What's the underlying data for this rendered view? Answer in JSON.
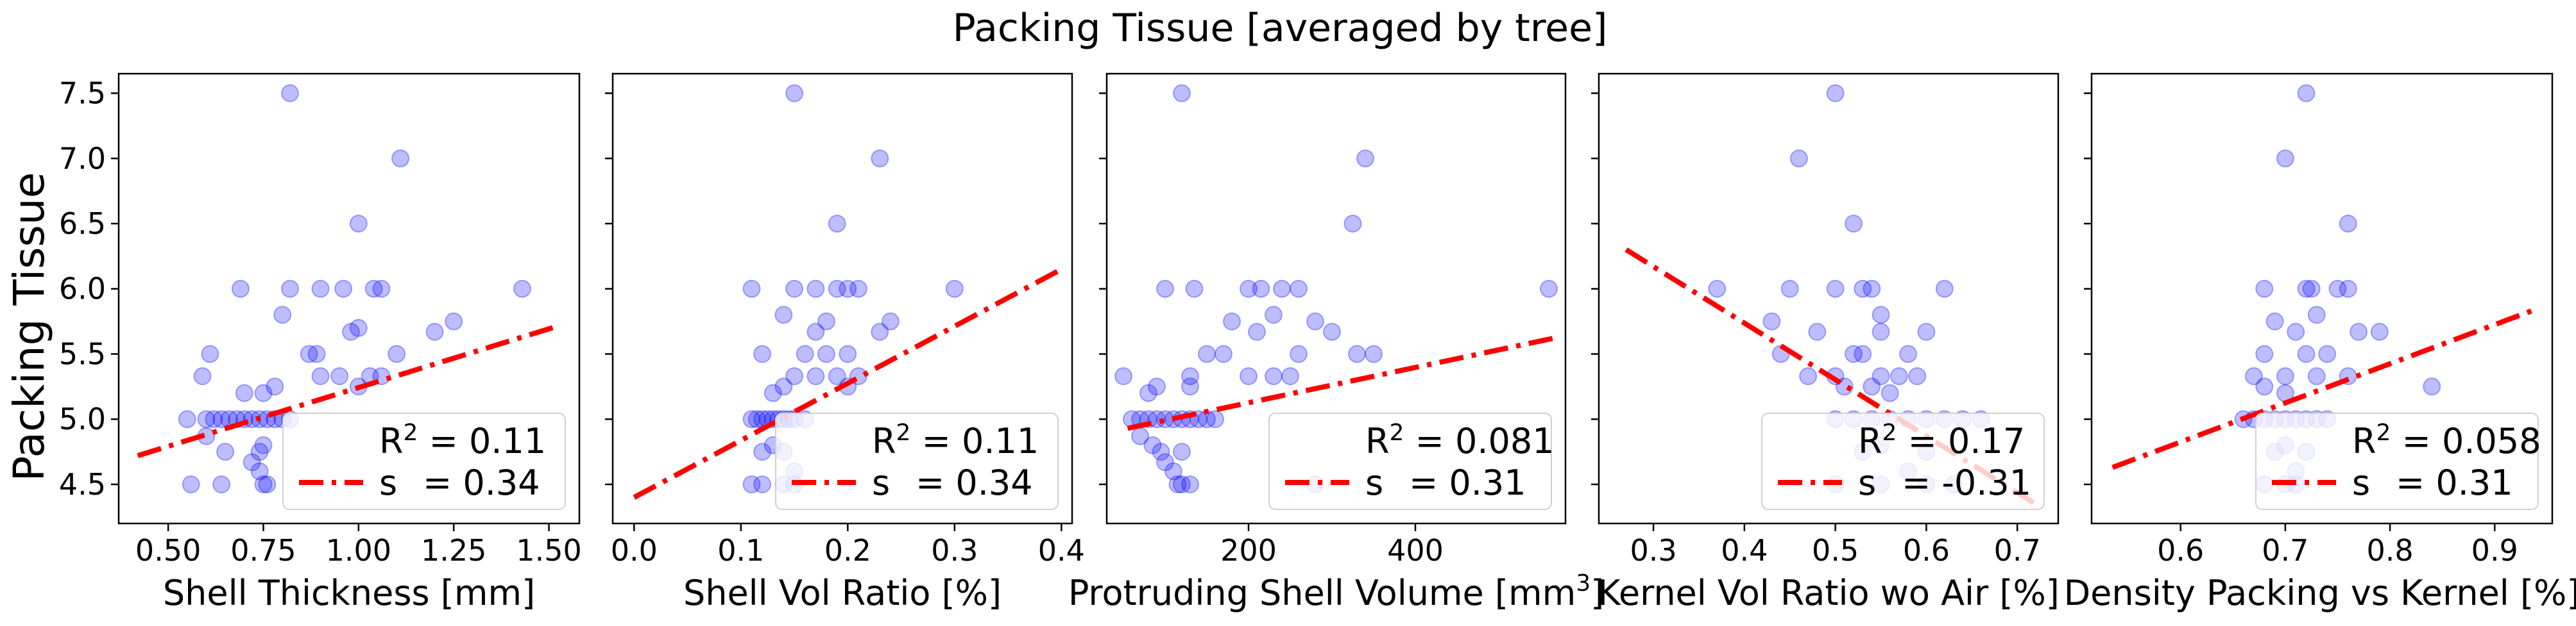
{
  "figure_title": "Packing Tissue [averaged by tree]",
  "ylabel": "Packing Tissue",
  "colors": {
    "points": "#0000ff",
    "fit_line": "#ff0000",
    "axes": "#000000"
  },
  "chart_data": [
    {
      "type": "scatter",
      "xlabel": "Shell Thickness [mm]",
      "xlabel_sup": "",
      "xlabel_tail": "",
      "xlim": [
        0.37,
        1.58
      ],
      "ylim": [
        4.2,
        7.65
      ],
      "xticks": [
        0.5,
        0.75,
        1.0,
        1.25,
        1.5
      ],
      "xtick_labels": [
        "0.50",
        "0.75",
        "1.00",
        "1.25",
        "1.50"
      ],
      "yticks": [
        4.5,
        5.0,
        5.5,
        6.0,
        6.5,
        7.0,
        7.5
      ],
      "ytick_labels": [
        "4.5",
        "5.0",
        "5.5",
        "6.0",
        "6.5",
        "7.0",
        "7.5"
      ],
      "fit": {
        "x": [
          0.42,
          1.53
        ],
        "y": [
          4.72,
          5.72
        ]
      },
      "legend": {
        "r2_label": "R",
        "r2_sup": "2",
        "r2_value": " = 0.11",
        "s_label": "s",
        "s_value": "= 0.34"
      },
      "points": [
        [
          0.82,
          7.5
        ],
        [
          1.11,
          7.0
        ],
        [
          1.0,
          6.5
        ],
        [
          0.69,
          6.0
        ],
        [
          0.82,
          6.0
        ],
        [
          0.9,
          6.0
        ],
        [
          0.96,
          6.0
        ],
        [
          1.04,
          6.0
        ],
        [
          1.06,
          6.0
        ],
        [
          1.43,
          6.0
        ],
        [
          0.8,
          5.8
        ],
        [
          1.0,
          5.7
        ],
        [
          1.25,
          5.75
        ],
        [
          0.98,
          5.67
        ],
        [
          1.2,
          5.67
        ],
        [
          0.87,
          5.5
        ],
        [
          0.89,
          5.5
        ],
        [
          1.1,
          5.5
        ],
        [
          0.61,
          5.5
        ],
        [
          0.9,
          5.33
        ],
        [
          0.95,
          5.33
        ],
        [
          1.03,
          5.33
        ],
        [
          1.06,
          5.33
        ],
        [
          0.59,
          5.33
        ],
        [
          0.78,
          5.25
        ],
        [
          1.0,
          5.25
        ],
        [
          0.7,
          5.2
        ],
        [
          0.75,
          5.2
        ],
        [
          0.55,
          5.0
        ],
        [
          0.6,
          5.0
        ],
        [
          0.62,
          5.0
        ],
        [
          0.64,
          5.0
        ],
        [
          0.66,
          5.0
        ],
        [
          0.68,
          5.0
        ],
        [
          0.7,
          5.0
        ],
        [
          0.72,
          5.0
        ],
        [
          0.74,
          5.0
        ],
        [
          0.76,
          5.0
        ],
        [
          0.78,
          5.0
        ],
        [
          0.8,
          5.0
        ],
        [
          0.82,
          5.0
        ],
        [
          0.65,
          4.75
        ],
        [
          0.74,
          4.75
        ],
        [
          0.75,
          4.8
        ],
        [
          0.74,
          4.6
        ],
        [
          0.56,
          4.5
        ],
        [
          0.64,
          4.5
        ],
        [
          0.75,
          4.5
        ],
        [
          0.76,
          4.5
        ],
        [
          0.6,
          4.87
        ],
        [
          0.72,
          4.67
        ]
      ]
    },
    {
      "type": "scatter",
      "xlabel": "Shell Vol Ratio [%]",
      "xlabel_sup": "",
      "xlabel_tail": "",
      "xlim": [
        -0.02,
        0.41
      ],
      "ylim": [
        4.2,
        7.65
      ],
      "xticks": [
        0.0,
        0.1,
        0.2,
        0.3,
        0.4
      ],
      "xtick_labels": [
        "0.0",
        "0.1",
        "0.2",
        "0.3",
        "0.4"
      ],
      "yticks": [
        4.5,
        5.0,
        5.5,
        6.0,
        6.5,
        7.0,
        7.5
      ],
      "ytick_labels": [
        "",
        "",
        "",
        "",
        "",
        "",
        ""
      ],
      "fit": {
        "x": [
          0.0,
          0.4
        ],
        "y": [
          4.4,
          6.15
        ]
      },
      "legend": {
        "r2_label": "R",
        "r2_sup": "2",
        "r2_value": " = 0.11",
        "s_label": "s",
        "s_value": "= 0.34"
      },
      "points": [
        [
          0.15,
          7.5
        ],
        [
          0.23,
          7.0
        ],
        [
          0.19,
          6.5
        ],
        [
          0.11,
          6.0
        ],
        [
          0.15,
          6.0
        ],
        [
          0.17,
          6.0
        ],
        [
          0.19,
          6.0
        ],
        [
          0.2,
          6.0
        ],
        [
          0.21,
          6.0
        ],
        [
          0.3,
          6.0
        ],
        [
          0.14,
          5.8
        ],
        [
          0.18,
          5.75
        ],
        [
          0.24,
          5.75
        ],
        [
          0.17,
          5.67
        ],
        [
          0.23,
          5.67
        ],
        [
          0.12,
          5.5
        ],
        [
          0.16,
          5.5
        ],
        [
          0.18,
          5.5
        ],
        [
          0.2,
          5.5
        ],
        [
          0.15,
          5.33
        ],
        [
          0.17,
          5.33
        ],
        [
          0.19,
          5.33
        ],
        [
          0.21,
          5.33
        ],
        [
          0.14,
          5.25
        ],
        [
          0.2,
          5.25
        ],
        [
          0.13,
          5.2
        ],
        [
          0.11,
          5.0
        ],
        [
          0.115,
          5.0
        ],
        [
          0.12,
          5.0
        ],
        [
          0.125,
          5.0
        ],
        [
          0.13,
          5.0
        ],
        [
          0.135,
          5.0
        ],
        [
          0.14,
          5.0
        ],
        [
          0.145,
          5.0
        ],
        [
          0.15,
          5.0
        ],
        [
          0.16,
          5.0
        ],
        [
          0.12,
          4.75
        ],
        [
          0.14,
          4.75
        ],
        [
          0.13,
          4.8
        ],
        [
          0.15,
          4.6
        ],
        [
          0.11,
          4.5
        ],
        [
          0.12,
          4.5
        ],
        [
          0.14,
          4.5
        ],
        [
          0.15,
          4.5
        ]
      ]
    },
    {
      "type": "scatter",
      "xlabel": "Protruding Shell Volume [mm",
      "xlabel_sup": "3",
      "xlabel_tail": "]",
      "xlim": [
        30,
        580
      ],
      "ylim": [
        4.2,
        7.65
      ],
      "xticks": [
        200,
        400
      ],
      "xtick_labels": [
        "200",
        "400"
      ],
      "yticks": [
        4.5,
        5.0,
        5.5,
        6.0,
        6.5,
        7.0,
        7.5
      ],
      "ytick_labels": [
        "",
        "",
        "",
        "",
        "",
        "",
        ""
      ],
      "fit": {
        "x": [
          55,
          565
        ],
        "y": [
          4.93,
          5.62
        ]
      },
      "legend": {
        "r2_label": "R",
        "r2_sup": "2",
        "r2_value": " = 0.081",
        "s_label": "s",
        "s_value": "= 0.31"
      },
      "points": [
        [
          120,
          7.5
        ],
        [
          340,
          7.0
        ],
        [
          325,
          6.5
        ],
        [
          100,
          6.0
        ],
        [
          135,
          6.0
        ],
        [
          200,
          6.0
        ],
        [
          215,
          6.0
        ],
        [
          240,
          6.0
        ],
        [
          260,
          6.0
        ],
        [
          560,
          6.0
        ],
        [
          230,
          5.8
        ],
        [
          180,
          5.75
        ],
        [
          280,
          5.75
        ],
        [
          210,
          5.67
        ],
        [
          300,
          5.67
        ],
        [
          150,
          5.5
        ],
        [
          170,
          5.5
        ],
        [
          260,
          5.5
        ],
        [
          330,
          5.5
        ],
        [
          350,
          5.5
        ],
        [
          50,
          5.33
        ],
        [
          130,
          5.33
        ],
        [
          200,
          5.33
        ],
        [
          230,
          5.33
        ],
        [
          250,
          5.33
        ],
        [
          90,
          5.25
        ],
        [
          130,
          5.25
        ],
        [
          80,
          5.2
        ],
        [
          60,
          5.0
        ],
        [
          70,
          5.0
        ],
        [
          80,
          5.0
        ],
        [
          90,
          5.0
        ],
        [
          100,
          5.0
        ],
        [
          110,
          5.0
        ],
        [
          120,
          5.0
        ],
        [
          130,
          5.0
        ],
        [
          140,
          5.0
        ],
        [
          150,
          5.0
        ],
        [
          160,
          5.0
        ],
        [
          95,
          4.75
        ],
        [
          120,
          4.75
        ],
        [
          85,
          4.8
        ],
        [
          110,
          4.6
        ],
        [
          115,
          4.5
        ],
        [
          120,
          4.5
        ],
        [
          130,
          4.5
        ],
        [
          280,
          4.5
        ],
        [
          70,
          4.87
        ],
        [
          100,
          4.67
        ]
      ]
    },
    {
      "type": "scatter",
      "xlabel": "Kernel Vol Ratio wo Air [%]",
      "xlabel_sup": "",
      "xlabel_tail": "",
      "xlim": [
        0.24,
        0.745
      ],
      "ylim": [
        4.2,
        7.65
      ],
      "xticks": [
        0.3,
        0.4,
        0.5,
        0.6,
        0.7
      ],
      "xtick_labels": [
        "0.3",
        "0.4",
        "0.5",
        "0.6",
        "0.7"
      ],
      "yticks": [
        4.5,
        5.0,
        5.5,
        6.0,
        6.5,
        7.0,
        7.5
      ],
      "ytick_labels": [
        "",
        "",
        "",
        "",
        "",
        "",
        ""
      ],
      "fit": {
        "x": [
          0.27,
          0.72
        ],
        "y": [
          6.3,
          4.35
        ]
      },
      "legend": {
        "r2_label": "R",
        "r2_sup": "2",
        "r2_value": " = 0.17",
        "s_label": "s",
        "s_value": "= -0.31"
      },
      "points": [
        [
          0.5,
          7.5
        ],
        [
          0.46,
          7.0
        ],
        [
          0.52,
          6.5
        ],
        [
          0.37,
          6.0
        ],
        [
          0.45,
          6.0
        ],
        [
          0.5,
          6.0
        ],
        [
          0.53,
          6.0
        ],
        [
          0.54,
          6.0
        ],
        [
          0.62,
          6.0
        ],
        [
          0.55,
          5.8
        ],
        [
          0.43,
          5.75
        ],
        [
          0.48,
          5.67
        ],
        [
          0.55,
          5.67
        ],
        [
          0.6,
          5.67
        ],
        [
          0.44,
          5.5
        ],
        [
          0.52,
          5.5
        ],
        [
          0.53,
          5.5
        ],
        [
          0.58,
          5.5
        ],
        [
          0.47,
          5.33
        ],
        [
          0.5,
          5.33
        ],
        [
          0.55,
          5.33
        ],
        [
          0.57,
          5.33
        ],
        [
          0.59,
          5.33
        ],
        [
          0.51,
          5.25
        ],
        [
          0.54,
          5.25
        ],
        [
          0.56,
          5.2
        ],
        [
          0.5,
          5.0
        ],
        [
          0.52,
          5.0
        ],
        [
          0.54,
          5.0
        ],
        [
          0.56,
          5.0
        ],
        [
          0.58,
          5.0
        ],
        [
          0.6,
          5.0
        ],
        [
          0.62,
          5.0
        ],
        [
          0.64,
          5.0
        ],
        [
          0.66,
          5.0
        ],
        [
          0.53,
          4.75
        ],
        [
          0.6,
          4.75
        ],
        [
          0.55,
          4.8
        ],
        [
          0.58,
          4.6
        ],
        [
          0.5,
          4.5
        ],
        [
          0.55,
          4.5
        ],
        [
          0.6,
          4.5
        ],
        [
          0.63,
          4.5
        ]
      ]
    },
    {
      "type": "scatter",
      "xlabel": "Density Packing vs Kernel [%]",
      "xlabel_sup": "",
      "xlabel_tail": "",
      "xlim": [
        0.515,
        0.955
      ],
      "ylim": [
        4.2,
        7.65
      ],
      "xticks": [
        0.6,
        0.7,
        0.8,
        0.9
      ],
      "xtick_labels": [
        "0.6",
        "0.7",
        "0.8",
        "0.9"
      ],
      "yticks": [
        4.5,
        5.0,
        5.5,
        6.0,
        6.5,
        7.0,
        7.5
      ],
      "ytick_labels": [
        "",
        "",
        "",
        "",
        "",
        "",
        ""
      ],
      "fit": {
        "x": [
          0.535,
          0.935
        ],
        "y": [
          4.63,
          5.83
        ]
      },
      "legend": {
        "r2_label": "R",
        "r2_sup": "2",
        "r2_value": " = 0.058",
        "s_label": "s",
        "s_value": "= 0.31"
      },
      "points": [
        [
          0.72,
          7.5
        ],
        [
          0.7,
          7.0
        ],
        [
          0.76,
          6.5
        ],
        [
          0.68,
          6.0
        ],
        [
          0.72,
          6.0
        ],
        [
          0.725,
          6.0
        ],
        [
          0.75,
          6.0
        ],
        [
          0.76,
          6.0
        ],
        [
          0.73,
          5.8
        ],
        [
          0.69,
          5.75
        ],
        [
          0.71,
          5.67
        ],
        [
          0.77,
          5.67
        ],
        [
          0.79,
          5.67
        ],
        [
          0.68,
          5.5
        ],
        [
          0.72,
          5.5
        ],
        [
          0.74,
          5.5
        ],
        [
          0.67,
          5.33
        ],
        [
          0.7,
          5.33
        ],
        [
          0.73,
          5.33
        ],
        [
          0.76,
          5.33
        ],
        [
          0.68,
          5.25
        ],
        [
          0.84,
          5.25
        ],
        [
          0.7,
          5.2
        ],
        [
          0.66,
          5.0
        ],
        [
          0.67,
          5.0
        ],
        [
          0.68,
          5.0
        ],
        [
          0.69,
          5.0
        ],
        [
          0.7,
          5.0
        ],
        [
          0.71,
          5.0
        ],
        [
          0.72,
          5.0
        ],
        [
          0.73,
          5.0
        ],
        [
          0.74,
          5.0
        ],
        [
          0.69,
          4.75
        ],
        [
          0.72,
          4.75
        ],
        [
          0.7,
          4.8
        ],
        [
          0.71,
          4.6
        ],
        [
          0.68,
          4.5
        ],
        [
          0.7,
          4.5
        ],
        [
          0.71,
          4.5
        ]
      ]
    }
  ]
}
